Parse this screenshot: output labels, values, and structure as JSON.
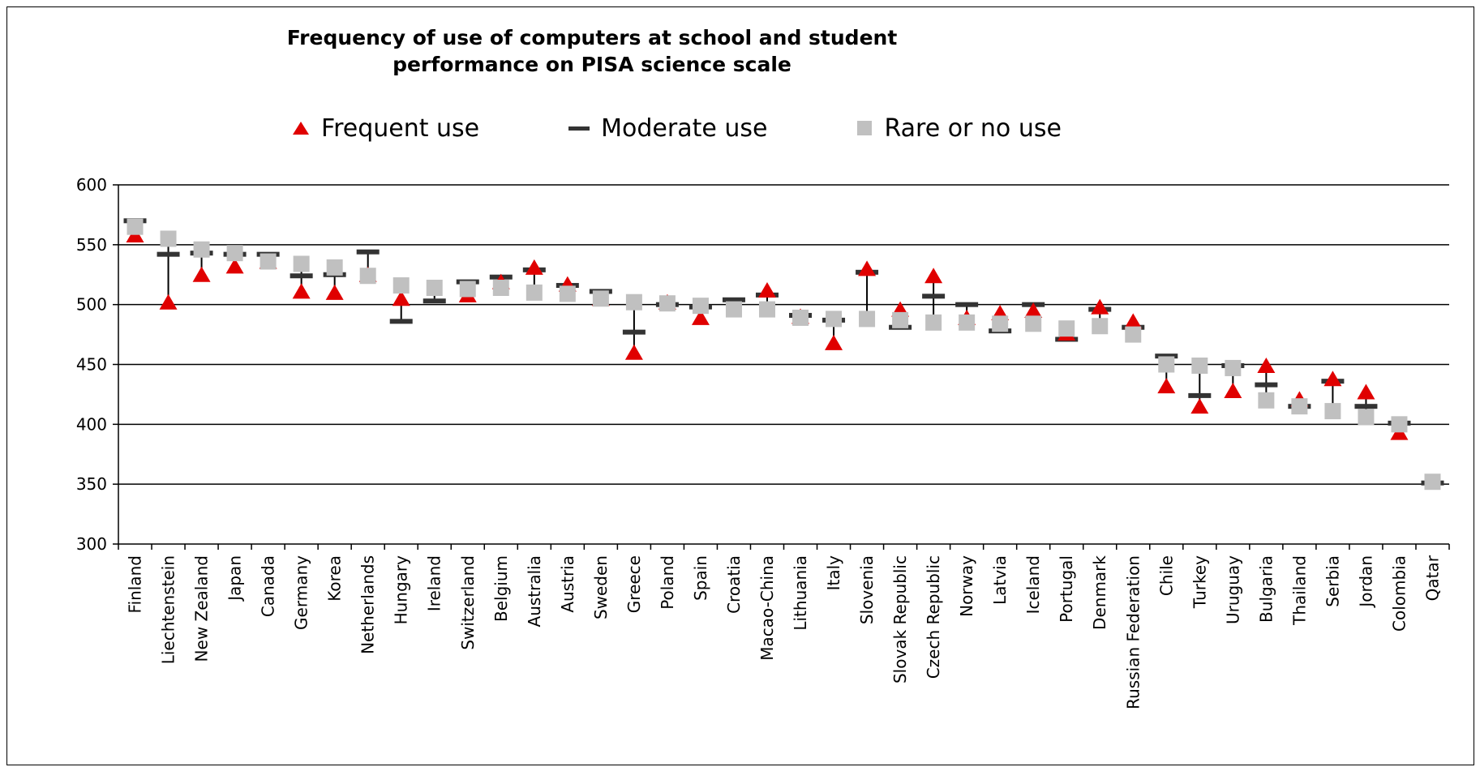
{
  "chart_data": {
    "type": "scatter",
    "title_line1": "Frequency of use of computers at school and student",
    "title_line2": "performance on PISA science scale",
    "legend_position": "top",
    "grid": true,
    "ylim": [
      300,
      600
    ],
    "yticks": [
      300,
      350,
      400,
      450,
      500,
      550,
      600
    ],
    "colors": {
      "frequent": "#e00000",
      "moderate": "#333333",
      "rare": "#c0c0c0",
      "whisker": "#000000"
    },
    "categories": [
      "Finland",
      "Liechtenstein",
      "New Zealand",
      "Japan",
      "Canada",
      "Germany",
      "Korea",
      "Netherlands",
      "Hungary",
      "Ireland",
      "Switzerland",
      "Belgium",
      "Australia",
      "Austria",
      "Sweden",
      "Greece",
      "Poland",
      "Spain",
      "Croatia",
      "Macao-China",
      "Lithuania",
      "Italy",
      "Slovenia",
      "Slovak Republic",
      "Czech Republic",
      "Norway",
      "Latvia",
      "Iceland",
      "Portugal",
      "Denmark",
      "Russian Federation",
      "Chile",
      "Turkey",
      "Uruguay",
      "Bulgaria",
      "Thailand",
      "Serbia",
      "Jordan",
      "Colombia",
      "Qatar"
    ],
    "series": [
      {
        "name": "Frequent use",
        "marker": "triangle",
        "values": [
          558,
          502,
          525,
          532,
          536,
          511,
          510,
          525,
          505,
          null,
          508,
          519,
          531,
          517,
          505,
          460,
          502,
          489,
          null,
          512,
          490,
          468,
          530,
          496,
          524,
          489,
          493,
          495,
          476,
          498,
          486,
          432,
          415,
          428,
          449,
          421,
          438,
          427,
          393,
          null
        ]
      },
      {
        "name": "Moderate use",
        "marker": "dash",
        "values": [
          570,
          542,
          543,
          542,
          542,
          524,
          525,
          544,
          486,
          503,
          519,
          523,
          529,
          516,
          511,
          477,
          500,
          498,
          504,
          508,
          491,
          487,
          527,
          481,
          507,
          500,
          478,
          500,
          471,
          496,
          481,
          457,
          424,
          449,
          433,
          415,
          436,
          415,
          401,
          351
        ]
      },
      {
        "name": "Rare or no use",
        "marker": "square",
        "values": [
          565,
          555,
          546,
          543,
          536,
          534,
          531,
          524,
          516,
          514,
          513,
          514,
          510,
          509,
          505,
          502,
          501,
          499,
          496,
          496,
          489,
          488,
          488,
          487,
          485,
          485,
          484,
          484,
          480,
          482,
          475,
          450,
          449,
          447,
          420,
          415,
          411,
          406,
          400,
          352
        ]
      }
    ]
  }
}
